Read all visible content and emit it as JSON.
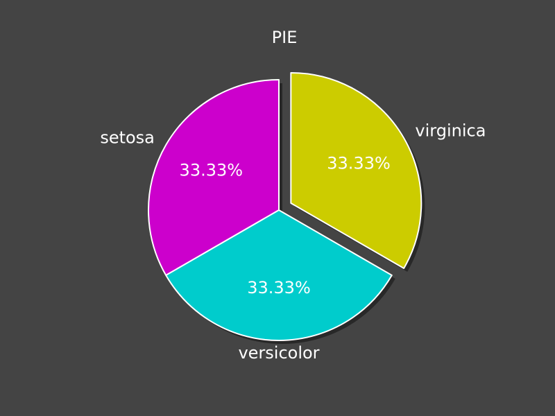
{
  "chart_data": {
    "type": "pie",
    "title": "PIE",
    "categories": [
      "setosa",
      "versicolor",
      "virginica"
    ],
    "values": [
      33.33,
      33.33,
      33.33
    ],
    "value_labels": [
      "33.33%",
      "33.33%",
      "33.33%"
    ],
    "colors": [
      "#cc00cc",
      "#00cccc",
      "#cccc00"
    ],
    "exploded": [
      "virginica"
    ],
    "background_color": "#444444",
    "edge_color": "#ffffff",
    "shadow": true
  }
}
